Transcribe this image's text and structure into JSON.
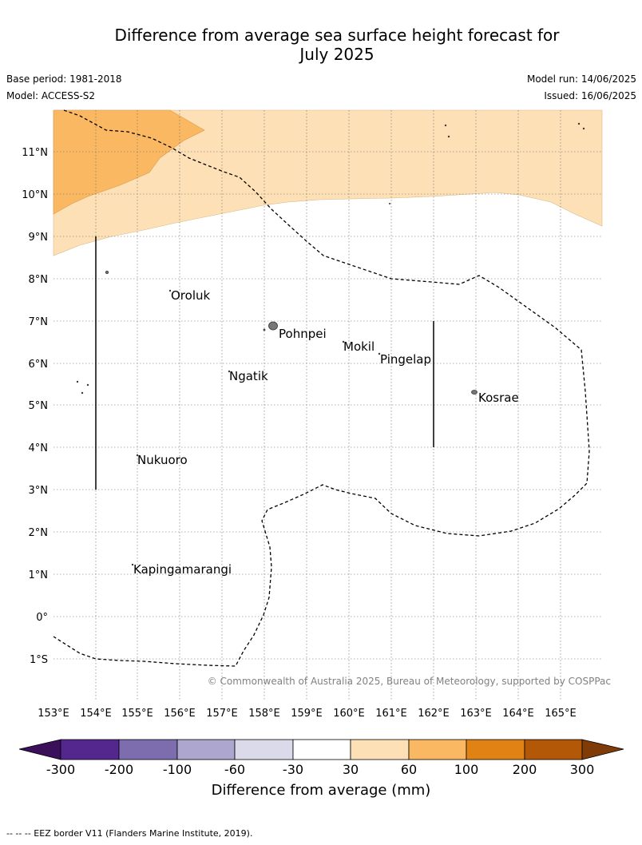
{
  "title_line1": "Difference from average sea surface height forecast for",
  "title_line2": "July 2025",
  "base_period": "Base period: 1981-2018",
  "model": "Model: ACCESS-S2",
  "model_run": "Model run: 14/06/2025",
  "issued": "Issued: 16/06/2025",
  "copyright": "© Commonwealth of Australia 2025, Bureau of Meteorology, supported by COSPPac",
  "footnote": "-- -- -- EEZ border V11 (Flanders Marine Institute, 2019).",
  "colorbar_label": "Difference from average (mm)",
  "lat_labels": [
    "11°N",
    "10°N",
    "9°N",
    "8°N",
    "7°N",
    "6°N",
    "5°N",
    "4°N",
    "3°N",
    "2°N",
    "1°N",
    "0°",
    "1°S"
  ],
  "lon_labels": [
    "153°E",
    "154°E",
    "155°E",
    "156°E",
    "157°E",
    "158°E",
    "159°E",
    "160°E",
    "161°E",
    "162°E",
    "163°E",
    "164°E",
    "165°E"
  ],
  "colorbar": {
    "ticks": [
      "-300",
      "-200",
      "-100",
      "-60",
      "-30",
      "30",
      "60",
      "100",
      "200",
      "300"
    ],
    "colors": [
      "#3b0f5a",
      "#54278f",
      "#7d6daf",
      "#ada6ce",
      "#dadaeb",
      "#ffffff",
      "#fde0b6",
      "#fbb862",
      "#e08214",
      "#b35806",
      "#7f3b08"
    ]
  },
  "places": [
    {
      "name": "Oroluk",
      "lon": 155.8,
      "lat": 7.6
    },
    {
      "name": "Pohnpei",
      "lon": 158.3,
      "lat": 6.9
    },
    {
      "name": "Mokil",
      "lon": 159.8,
      "lat": 6.7
    },
    {
      "name": "Pingelap",
      "lon": 160.7,
      "lat": 6.2
    },
    {
      "name": "Ngatik",
      "lon": 157.1,
      "lat": 5.8
    },
    {
      "name": "Kosrae",
      "lon": 163.0,
      "lat": 5.3
    },
    {
      "name": "Nukuoro",
      "lon": 154.9,
      "lat": 3.85
    },
    {
      "name": "Kapingamarangi",
      "lon": 154.8,
      "lat": 1.1
    }
  ],
  "legend_fill_colors": {
    "light_orange": "#fde0b6",
    "orange": "#fbb862",
    "outline": "#c8a060"
  }
}
